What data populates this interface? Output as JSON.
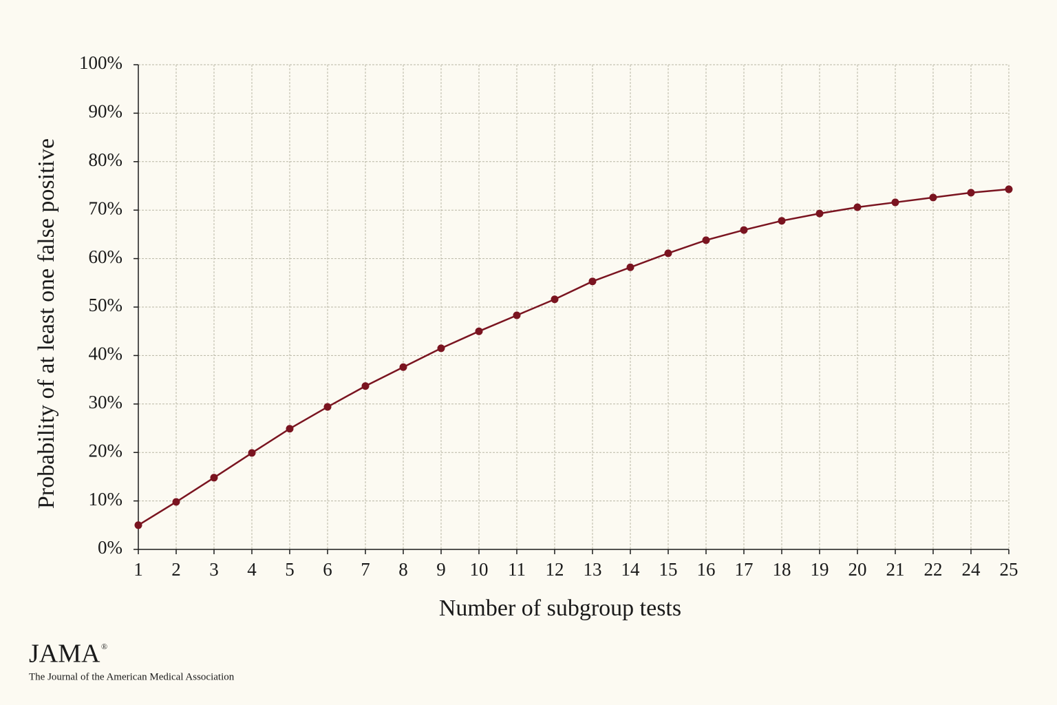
{
  "chart_data": {
    "type": "line",
    "x_label": "Number of subgroup tests",
    "y_label": "Probability of at least one false positive",
    "categories": [
      "1",
      "2",
      "3",
      "4",
      "5",
      "6",
      "7",
      "8",
      "9",
      "10",
      "11",
      "12",
      "13",
      "14",
      "15",
      "16",
      "17",
      "18",
      "19",
      "20",
      "21",
      "22",
      "24",
      "25"
    ],
    "values": [
      5.0,
      9.8,
      14.8,
      19.9,
      24.9,
      29.4,
      33.7,
      37.6,
      41.5,
      45.0,
      48.3,
      51.6,
      55.3,
      58.2,
      61.1,
      63.8,
      65.9,
      67.8,
      69.3,
      70.6,
      71.6,
      72.6,
      73.6,
      74.3
    ],
    "color": "#7a1420",
    "ylim": [
      0,
      100
    ],
    "yticks": [
      {
        "value": 0,
        "label": "0%"
      },
      {
        "value": 10,
        "label": "10%"
      },
      {
        "value": 20,
        "label": "20%"
      },
      {
        "value": 30,
        "label": "30%"
      },
      {
        "value": 40,
        "label": "40%"
      },
      {
        "value": 50,
        "label": "50%"
      },
      {
        "value": 60,
        "label": "60%"
      },
      {
        "value": 70,
        "label": "70%"
      },
      {
        "value": 80,
        "label": "80%"
      },
      {
        "value": 90,
        "label": "90%"
      },
      {
        "value": 100,
        "label": "100%"
      }
    ],
    "grid": true
  },
  "branding": {
    "logo": "JAMA",
    "mark": "®",
    "tagline": "The Journal of the American Medical Association"
  }
}
